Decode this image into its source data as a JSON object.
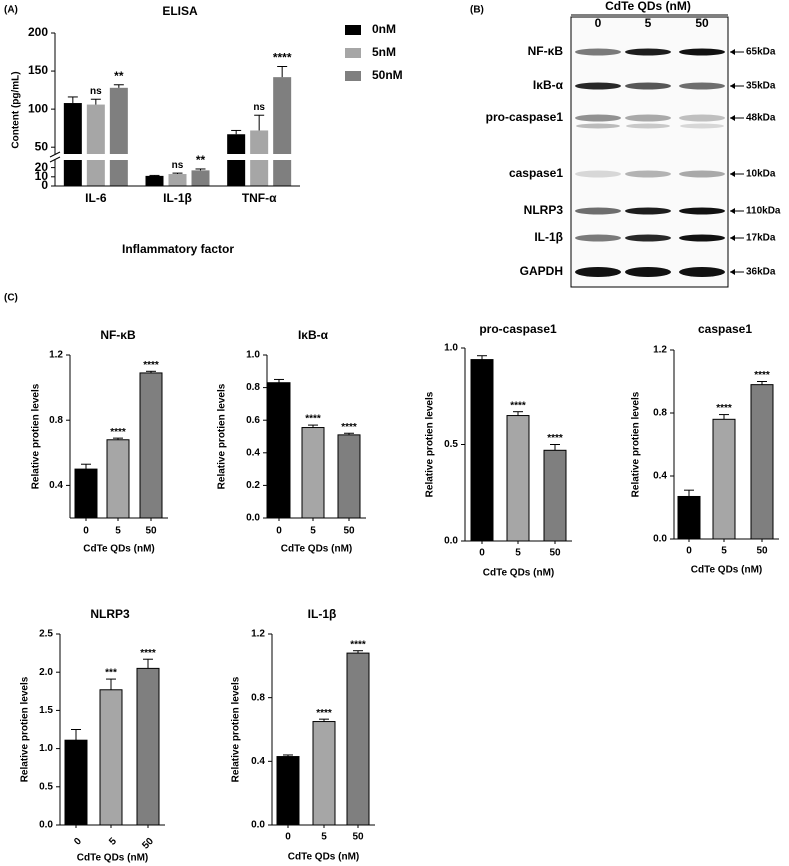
{
  "panel_labels": [
    "(A)",
    "(B)",
    "(C)"
  ],
  "blot": {
    "title": "CdTe QDs (nM)",
    "lanes": [
      "0",
      "5",
      "50"
    ],
    "rows": [
      {
        "label": "NF-κB",
        "size": "65kDa"
      },
      {
        "label": "IκB-α",
        "size": "35kDa"
      },
      {
        "label": "pro-caspase1",
        "size": "48kDa"
      },
      {
        "label": "caspase1",
        "size": "10kDa"
      },
      {
        "label": "NLRP3",
        "size": "110kDa"
      },
      {
        "label": "IL-1β",
        "size": "17kDa"
      },
      {
        "label": "GAPDH",
        "size": "36kDa"
      }
    ]
  },
  "chart_data": [
    {
      "type": "grouped-bar",
      "title": "ELISA",
      "x_label": "Inflammatory factor",
      "y_label": "Content (pg/mL)",
      "categories": [
        "IL-6",
        "IL-1β",
        "TNF-α"
      ],
      "series": [
        {
          "name": "0nM",
          "color": "#000000",
          "values": [
            108,
            11,
            67
          ],
          "errors": [
            8,
            0.5,
            5
          ],
          "annotations": [
            null,
            null,
            null
          ]
        },
        {
          "name": "5nM",
          "color": "#a6a6a6",
          "values": [
            106,
            13,
            72
          ],
          "errors": [
            7,
            1,
            20
          ],
          "annotations": [
            "ns",
            "ns",
            "ns"
          ]
        },
        {
          "name": "50nM",
          "color": "#7f7f7f",
          "values": [
            128,
            17,
            142
          ],
          "errors": [
            4,
            1.5,
            14
          ],
          "annotations": [
            "**",
            "**",
            "****"
          ]
        }
      ],
      "ylim": [
        0,
        200
      ],
      "ybreak": [
        25,
        45
      ],
      "yticks": [
        0,
        10,
        20,
        50,
        100,
        150,
        200
      ],
      "legend": "right"
    },
    {
      "type": "bar",
      "title": "NF-κB",
      "x_label": "CdTe QDs (nM)",
      "y_label": "Relative protien levels",
      "categories": [
        "0",
        "5",
        "50"
      ],
      "values": [
        0.5,
        0.68,
        1.09
      ],
      "errors": [
        0.03,
        0.01,
        0.01
      ],
      "annotations": [
        null,
        "****",
        "****"
      ],
      "colors": [
        "#000000",
        "#a6a6a6",
        "#7f7f7f"
      ],
      "ylim": [
        0.2,
        1.2
      ],
      "yticks": [
        0.4,
        0.8,
        1.2
      ]
    },
    {
      "type": "bar",
      "title": "IκB-α",
      "x_label": "CdTe QDs (nM)",
      "y_label": "Relative protien levels",
      "categories": [
        "0",
        "5",
        "50"
      ],
      "values": [
        0.83,
        0.555,
        0.51
      ],
      "errors": [
        0.02,
        0.015,
        0.01
      ],
      "annotations": [
        null,
        "****",
        "****"
      ],
      "colors": [
        "#000000",
        "#a6a6a6",
        "#7f7f7f"
      ],
      "ylim": [
        0,
        1.0
      ],
      "yticks": [
        {
          "value": 0,
          "label": "0.0"
        },
        0.2,
        0.4,
        0.6,
        0.8,
        {
          "value": 1,
          "label": "1.0"
        }
      ]
    },
    {
      "type": "bar",
      "title": "pro-caspase1",
      "x_label": "CdTe QDs (nM)",
      "y_label": "Relative protien levels",
      "categories": [
        "0",
        "5",
        "50"
      ],
      "values": [
        0.94,
        0.65,
        0.47
      ],
      "errors": [
        0.02,
        0.02,
        0.03
      ],
      "annotations": [
        null,
        "****",
        "****"
      ],
      "colors": [
        "#000000",
        "#a6a6a6",
        "#7f7f7f"
      ],
      "ylim": [
        0,
        1.0
      ],
      "yticks": [
        {
          "value": 0,
          "label": "0.0"
        },
        0.5,
        {
          "value": 1,
          "label": "1.0"
        }
      ]
    },
    {
      "type": "bar",
      "title": "caspase1",
      "x_label": "CdTe QDs (nM)",
      "y_label": "Relative protien levels",
      "categories": [
        "0",
        "5",
        "50"
      ],
      "values": [
        0.27,
        0.76,
        0.98
      ],
      "errors": [
        0.04,
        0.03,
        0.02
      ],
      "annotations": [
        null,
        "****",
        "****"
      ],
      "colors": [
        "#000000",
        "#a6a6a6",
        "#7f7f7f"
      ],
      "ylim": [
        0,
        1.2
      ],
      "yticks": [
        {
          "value": 0,
          "label": "0.0"
        },
        0.4,
        0.8,
        1.2
      ]
    },
    {
      "type": "bar",
      "title": "NLRP3",
      "x_label": "CdTe QDs (nM)",
      "y_label": "Relative protien levels",
      "categories": [
        "0",
        "5",
        "50"
      ],
      "values": [
        1.11,
        1.77,
        2.05
      ],
      "errors": [
        0.14,
        0.14,
        0.12
      ],
      "annotations": [
        null,
        "***",
        "****"
      ],
      "colors": [
        "#000000",
        "#a6a6a6",
        "#7f7f7f"
      ],
      "ylim": [
        0,
        2.5
      ],
      "yticks": [
        {
          "value": 0,
          "label": "0.0"
        },
        0.5,
        {
          "value": 1,
          "label": "1.0"
        },
        1.5,
        {
          "value": 2,
          "label": "2.0"
        },
        2.5
      ]
    },
    {
      "type": "bar",
      "title": "IL-1β",
      "x_label": "CdTe QDs (nM)",
      "y_label": "Relative protien levels",
      "categories": [
        "0",
        "5",
        "50"
      ],
      "values": [
        0.43,
        0.65,
        1.08
      ],
      "errors": [
        0.01,
        0.015,
        0.015
      ],
      "annotations": [
        null,
        "****",
        "****"
      ],
      "colors": [
        "#000000",
        "#a6a6a6",
        "#7f7f7f"
      ],
      "ylim": [
        0,
        1.2
      ],
      "yticks": [
        {
          "value": 0,
          "label": "0.0"
        },
        0.4,
        0.8,
        1.2
      ]
    }
  ]
}
